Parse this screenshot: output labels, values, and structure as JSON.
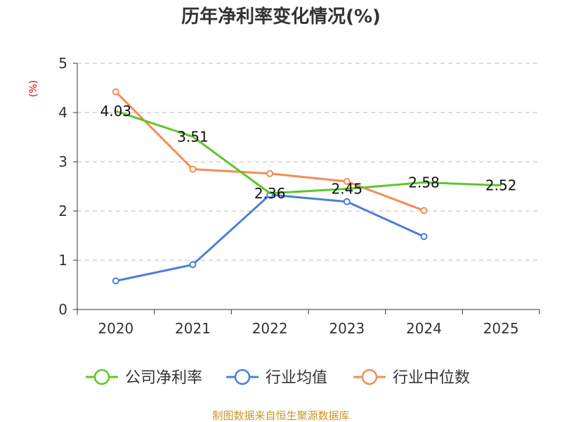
{
  "chart_data": {
    "type": "line",
    "title": "历年净利率变化情况(%)",
    "ylabel": "(%)",
    "xlabel": "",
    "categories": [
      "2020",
      "2021",
      "2022",
      "2023",
      "2024",
      "2025"
    ],
    "ylim": [
      0,
      5
    ],
    "yticks": [
      "0",
      "1",
      "2",
      "3",
      "4",
      "5"
    ],
    "grid": true,
    "legend_position": "bottom",
    "series": [
      {
        "name": "公司净利率",
        "color": "#5fc52e",
        "values": [
          4.03,
          3.51,
          2.36,
          2.45,
          2.58,
          2.52
        ],
        "labels": [
          "4.03",
          "3.51",
          "2.36",
          "2.45",
          "2.58",
          "2.52"
        ],
        "show_markers": false
      },
      {
        "name": "行业均值",
        "color": "#4a7fd9",
        "values": [
          0.58,
          0.91,
          2.33,
          2.19,
          1.48,
          null
        ],
        "show_markers": true
      },
      {
        "name": "行业中位数",
        "color": "#f58c52",
        "values": [
          4.42,
          2.85,
          2.76,
          2.6,
          2.01,
          null
        ],
        "show_markers": true
      }
    ]
  },
  "source": "制图数据来自恒生聚源数据库"
}
